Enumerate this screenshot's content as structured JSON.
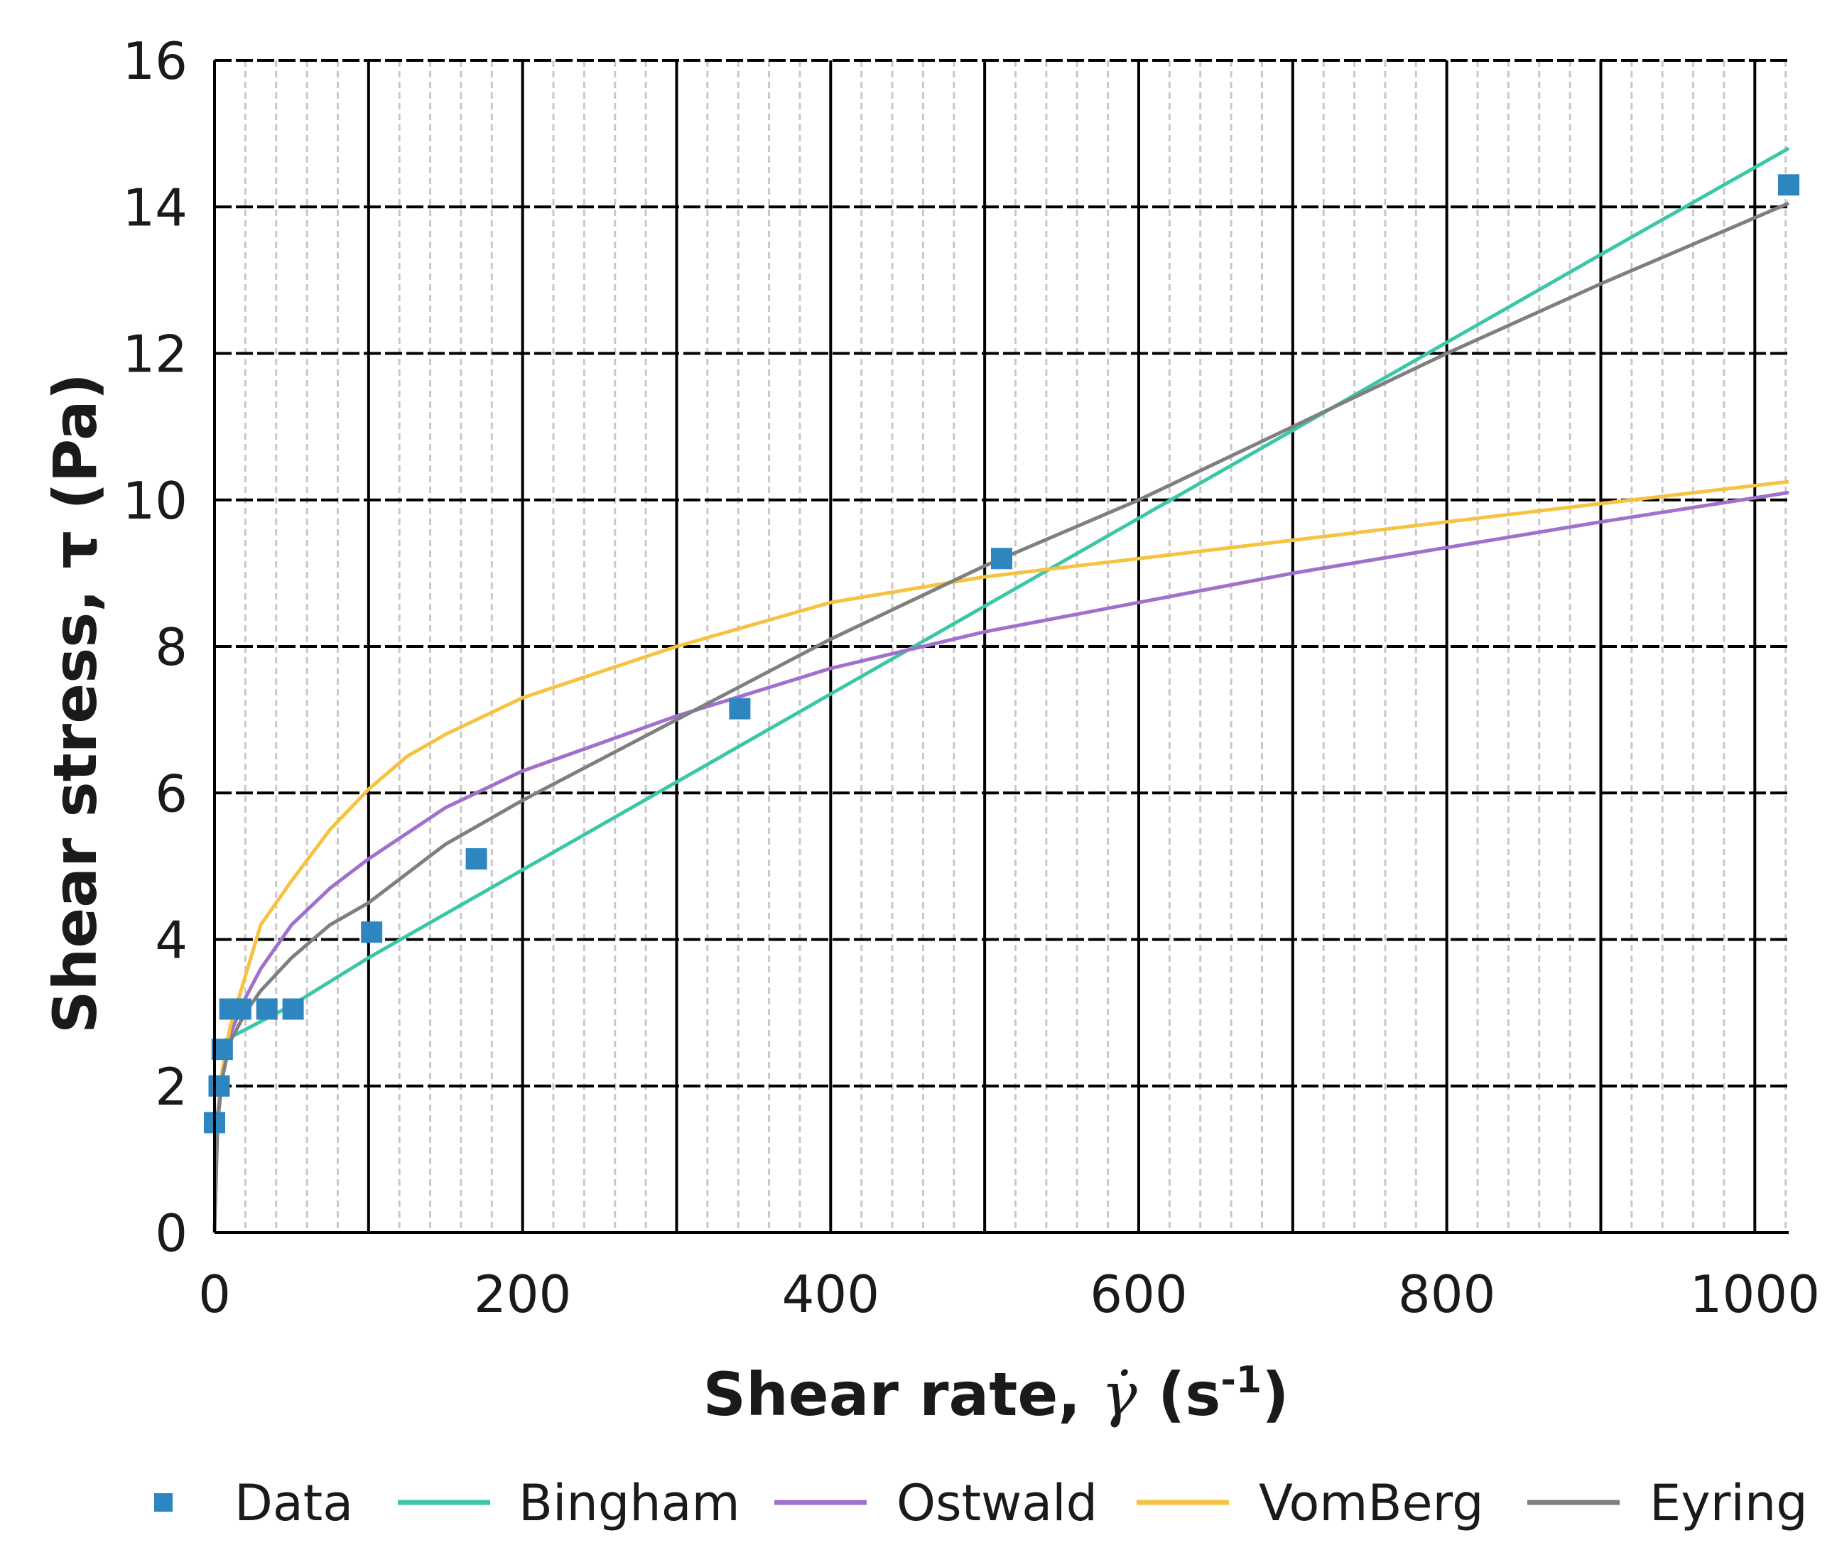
{
  "chart_data": {
    "type": "scatter",
    "xlabel": "Shear rate, γ̇ (s⁻¹)",
    "xlabel_parts": {
      "main": "Shear rate, ",
      "symbol": "γ̇",
      "paren_open": " (s",
      "exponent": "-1",
      "paren_close": ")"
    },
    "ylabel": "Shear stress, τ (Pa)",
    "xlim": [
      0,
      1022
    ],
    "ylim": [
      0,
      16
    ],
    "xticks": [
      0,
      200,
      400,
      600,
      800,
      1000
    ],
    "yticks": [
      0,
      2,
      4,
      6,
      8,
      10,
      12,
      14,
      16
    ],
    "xtick_labels": [
      "0",
      "200",
      "400",
      "600",
      "800",
      "1000"
    ],
    "ytick_labels": [
      "0",
      "2",
      "4",
      "6",
      "8",
      "10",
      "12",
      "14",
      "16"
    ],
    "grid": {
      "major": true,
      "minor": true
    },
    "legend_position": "bottom",
    "series": [
      {
        "name": "Data",
        "kind": "points",
        "color": "#2e86c1",
        "points": [
          [
            0,
            1.5
          ],
          [
            3,
            2.0
          ],
          [
            5,
            2.5
          ],
          [
            10,
            3.05
          ],
          [
            17,
            3.05
          ],
          [
            34,
            3.05
          ],
          [
            51,
            3.05
          ],
          [
            102,
            4.1
          ],
          [
            170,
            5.1
          ],
          [
            341,
            7.15
          ],
          [
            511,
            9.2
          ],
          [
            1022,
            14.3
          ]
        ]
      },
      {
        "name": "Bingham",
        "kind": "line",
        "color": "#3cc6a8",
        "points": [
          [
            0,
            2.55
          ],
          [
            50,
            3.1
          ],
          [
            100,
            3.75
          ],
          [
            200,
            4.95
          ],
          [
            300,
            6.15
          ],
          [
            400,
            7.35
          ],
          [
            500,
            8.55
          ],
          [
            600,
            9.75
          ],
          [
            700,
            10.95
          ],
          [
            800,
            12.15
          ],
          [
            900,
            13.35
          ],
          [
            1022,
            14.8
          ]
        ]
      },
      {
        "name": "Ostwald",
        "kind": "line",
        "color": "#a070cc",
        "points": [
          [
            0,
            0
          ],
          [
            2,
            1.6
          ],
          [
            5,
            2.2
          ],
          [
            10,
            2.7
          ],
          [
            20,
            3.2
          ],
          [
            30,
            3.6
          ],
          [
            50,
            4.2
          ],
          [
            75,
            4.7
          ],
          [
            100,
            5.1
          ],
          [
            150,
            5.8
          ],
          [
            200,
            6.3
          ],
          [
            300,
            7.05
          ],
          [
            400,
            7.7
          ],
          [
            500,
            8.2
          ],
          [
            600,
            8.6
          ],
          [
            700,
            9.0
          ],
          [
            800,
            9.35
          ],
          [
            900,
            9.7
          ],
          [
            1022,
            10.1
          ]
        ]
      },
      {
        "name": "VomBerg",
        "kind": "line",
        "color": "#f5c242",
        "points": [
          [
            0,
            0
          ],
          [
            2,
            1.5
          ],
          [
            5,
            2.2
          ],
          [
            10,
            2.8
          ],
          [
            20,
            3.5
          ],
          [
            30,
            4.2
          ],
          [
            50,
            4.8
          ],
          [
            75,
            5.5
          ],
          [
            100,
            6.05
          ],
          [
            125,
            6.5
          ],
          [
            150,
            6.8
          ],
          [
            200,
            7.3
          ],
          [
            300,
            8.0
          ],
          [
            400,
            8.6
          ],
          [
            500,
            8.95
          ],
          [
            600,
            9.2
          ],
          [
            700,
            9.45
          ],
          [
            800,
            9.7
          ],
          [
            900,
            9.95
          ],
          [
            1022,
            10.25
          ]
        ]
      },
      {
        "name": "Eyring",
        "kind": "line",
        "color": "#7f7f7f",
        "points": [
          [
            0,
            0
          ],
          [
            2,
            1.5
          ],
          [
            5,
            2.1
          ],
          [
            10,
            2.6
          ],
          [
            20,
            3.0
          ],
          [
            30,
            3.3
          ],
          [
            50,
            3.75
          ],
          [
            75,
            4.2
          ],
          [
            100,
            4.5
          ],
          [
            150,
            5.3
          ],
          [
            200,
            5.9
          ],
          [
            300,
            7.0
          ],
          [
            400,
            8.1
          ],
          [
            500,
            9.1
          ],
          [
            600,
            10.0
          ],
          [
            700,
            11.0
          ],
          [
            800,
            12.0
          ],
          [
            900,
            12.95
          ],
          [
            1022,
            14.05
          ]
        ]
      }
    ]
  }
}
